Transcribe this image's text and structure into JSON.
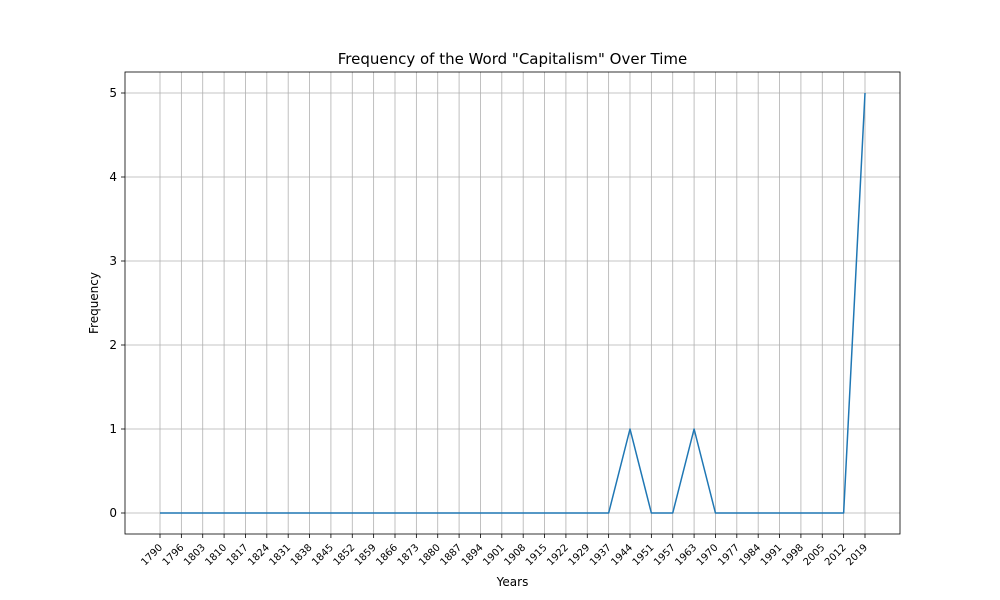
{
  "chart_data": {
    "type": "line",
    "title": "Frequency of the Word \"Capitalism\" Over Time",
    "xlabel": "Years",
    "ylabel": "Frequency",
    "x": [
      1790,
      1796,
      1803,
      1810,
      1817,
      1824,
      1831,
      1838,
      1845,
      1852,
      1859,
      1866,
      1873,
      1880,
      1887,
      1894,
      1901,
      1908,
      1915,
      1922,
      1929,
      1937,
      1944,
      1951,
      1957,
      1963,
      1970,
      1977,
      1984,
      1991,
      1998,
      2005,
      2012,
      2019
    ],
    "y": [
      0,
      0,
      0,
      0,
      0,
      0,
      0,
      0,
      0,
      0,
      0,
      0,
      0,
      0,
      0,
      0,
      0,
      0,
      0,
      0,
      0,
      0,
      1,
      0,
      0,
      1,
      0,
      0,
      0,
      0,
      0,
      0,
      0,
      5
    ],
    "xticks": [
      "1790",
      "1796",
      "1803",
      "1810",
      "1817",
      "1824",
      "1831",
      "1838",
      "1845",
      "1852",
      "1859",
      "1866",
      "1873",
      "1880",
      "1887",
      "1894",
      "1901",
      "1908",
      "1915",
      "1922",
      "1929",
      "1937",
      "1944",
      "1951",
      "1957",
      "1963",
      "1970",
      "1977",
      "1984",
      "1991",
      "1998",
      "2005",
      "2012",
      "2019"
    ],
    "yticks": [
      "0",
      "1",
      "2",
      "3",
      "4",
      "5"
    ],
    "ylim": [
      -0.25,
      5.25
    ],
    "grid": true,
    "color": "#1f77b4"
  }
}
